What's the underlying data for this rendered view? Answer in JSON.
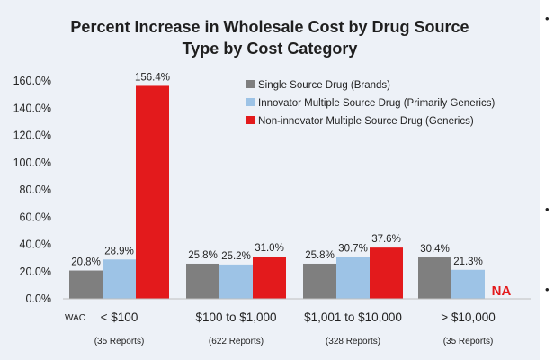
{
  "chart_data": {
    "type": "bar",
    "title": "Percent Increase in Wholesale Cost by Drug Source Type by Cost Category",
    "title_lines": [
      "Percent Increase in Wholesale Cost by Drug Source",
      "Type by Cost Category"
    ],
    "axis_prefix": "WAC",
    "categories": [
      "< $100",
      "$100 to $1,000",
      "$1,001 to $10,000",
      "> $10,000"
    ],
    "category_notes": [
      "(35 Reports)",
      "(622 Reports)",
      "(328 Reports)",
      "(35 Reports)"
    ],
    "ylim": [
      0,
      160
    ],
    "yticks": [
      "0.0%",
      "20.0%",
      "40.0%",
      "60.0%",
      "80.0%",
      "100.0%",
      "120.0%",
      "140.0%",
      "160.0%"
    ],
    "series": [
      {
        "name": "Single Source Drug (Brands)",
        "color": "#7f7f7f",
        "values": [
          20.8,
          25.8,
          25.8,
          30.4
        ],
        "labels": [
          "20.8%",
          "25.8%",
          "25.8%",
          "30.4%"
        ]
      },
      {
        "name": "Innovator Multiple Source Drug (Primarily Generics)",
        "color": "#9dc3e6",
        "values": [
          28.9,
          25.2,
          30.7,
          21.3
        ],
        "labels": [
          "28.9%",
          "25.2%",
          "30.7%",
          "21.3%"
        ]
      },
      {
        "name": "Non-innovator Multiple Source Drug (Generics)",
        "color": "#e31a1c",
        "values": [
          156.4,
          31.0,
          37.6,
          null
        ],
        "labels": [
          "156.4%",
          "31.0%",
          "37.6%",
          "NA"
        ]
      }
    ],
    "legend_position": "top-right",
    "grid": false
  },
  "side_bullets": [
    "•",
    "•",
    "•"
  ]
}
